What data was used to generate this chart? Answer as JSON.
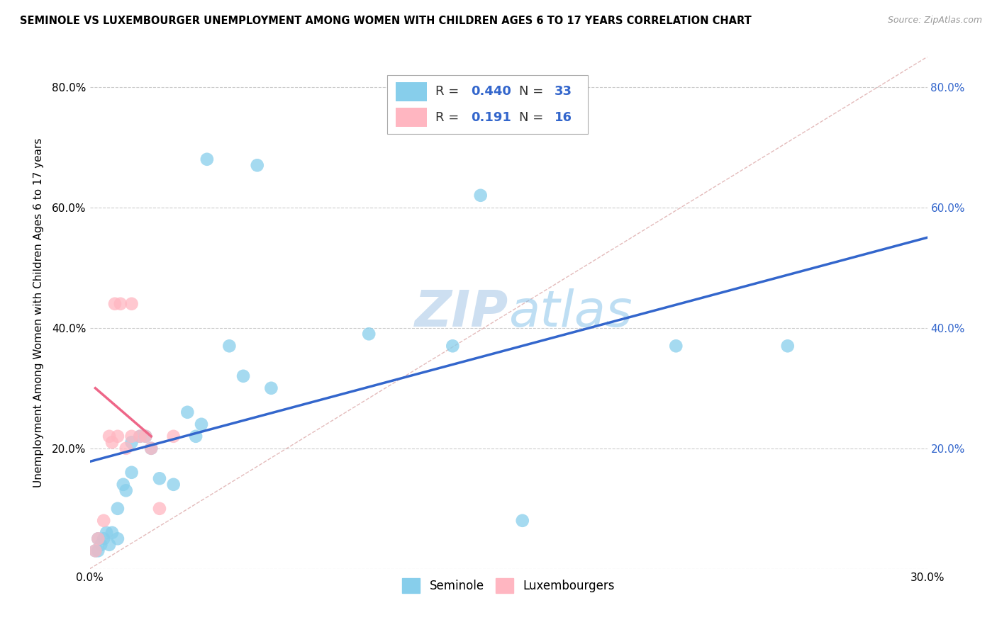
{
  "title": "SEMINOLE VS LUXEMBOURGER UNEMPLOYMENT AMONG WOMEN WITH CHILDREN AGES 6 TO 17 YEARS CORRELATION CHART",
  "source": "Source: ZipAtlas.com",
  "ylabel": "Unemployment Among Women with Children Ages 6 to 17 years",
  "xlim": [
    0.0,
    0.3
  ],
  "ylim": [
    0.0,
    0.85
  ],
  "x_ticks": [
    0.0,
    0.05,
    0.1,
    0.15,
    0.2,
    0.25,
    0.3
  ],
  "y_ticks": [
    0.0,
    0.2,
    0.4,
    0.6,
    0.8
  ],
  "seminole_color": "#87CEEB",
  "luxembourger_color": "#FFB6C1",
  "seminole_R": 0.44,
  "seminole_N": 33,
  "luxembourger_R": 0.191,
  "luxembourger_N": 16,
  "trend_line_blue": "#3366CC",
  "trend_line_pink": "#EE6688",
  "diagonal_color": "#DDAAAA",
  "watermark_color": "#C8DCF0",
  "seminole_x": [
    0.002,
    0.003,
    0.003,
    0.004,
    0.005,
    0.006,
    0.007,
    0.008,
    0.01,
    0.01,
    0.012,
    0.013,
    0.015,
    0.015,
    0.018,
    0.02,
    0.022,
    0.025,
    0.03,
    0.035,
    0.038,
    0.04,
    0.042,
    0.05,
    0.055,
    0.06,
    0.065,
    0.1,
    0.13,
    0.155,
    0.21,
    0.25,
    0.14
  ],
  "seminole_y": [
    0.03,
    0.05,
    0.03,
    0.04,
    0.05,
    0.06,
    0.04,
    0.06,
    0.05,
    0.1,
    0.14,
    0.13,
    0.21,
    0.16,
    0.22,
    0.22,
    0.2,
    0.15,
    0.14,
    0.26,
    0.22,
    0.24,
    0.68,
    0.37,
    0.32,
    0.67,
    0.3,
    0.39,
    0.37,
    0.08,
    0.37,
    0.37,
    0.62
  ],
  "luxembourger_x": [
    0.002,
    0.003,
    0.005,
    0.007,
    0.008,
    0.009,
    0.01,
    0.011,
    0.013,
    0.015,
    0.015,
    0.018,
    0.02,
    0.022,
    0.025,
    0.03
  ],
  "luxembourger_y": [
    0.03,
    0.05,
    0.08,
    0.22,
    0.21,
    0.44,
    0.22,
    0.44,
    0.2,
    0.44,
    0.22,
    0.22,
    0.22,
    0.2,
    0.1,
    0.22
  ],
  "blue_trend_x0": 0.0,
  "blue_trend_y0": 0.178,
  "blue_trend_x1": 0.3,
  "blue_trend_y1": 0.55,
  "pink_trend_x0": 0.002,
  "pink_trend_y0": 0.3,
  "pink_trend_x1": 0.022,
  "pink_trend_y1": 0.22
}
